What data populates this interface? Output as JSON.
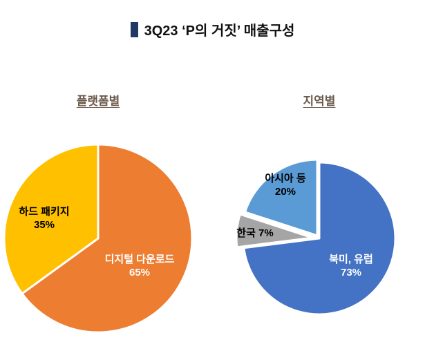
{
  "page": {
    "title": "3Q23 ‘P의 거짓’ 매출구성"
  },
  "chart_data": [
    {
      "type": "pie",
      "title": "플랫폼별",
      "labels": [
        "디지털 다운로드",
        "하드 패키지"
      ],
      "values": [
        65,
        35
      ],
      "pct_labels": [
        "65%",
        "35%"
      ],
      "colors": [
        "#ED7D31",
        "#FFC000"
      ],
      "label_text_colors": [
        "#FFFFFF",
        "#000000"
      ],
      "start_angle": "top",
      "direction": "clockwise",
      "explode": [
        0,
        0
      ],
      "legend": "none"
    },
    {
      "type": "pie",
      "title": "지역별",
      "labels": [
        "북미, 유럽",
        "한국",
        "아시아 등"
      ],
      "values": [
        73,
        7,
        20
      ],
      "pct_labels": [
        "73%",
        "7%",
        "20%"
      ],
      "colors": [
        "#4472C4",
        "#A5A5A5",
        "#5B9BD5"
      ],
      "label_text_colors": [
        "#FFFFFF",
        "#000000",
        "#000000"
      ],
      "start_angle": "top",
      "direction": "clockwise",
      "explode": [
        0,
        10,
        5
      ],
      "legend": "none"
    }
  ],
  "styles": {
    "title_bar_color": "#1F3864",
    "chart_title_color": "#6C5A4B",
    "slice_stroke_color": "#FFFFFF",
    "background": "#FFFFFF"
  }
}
